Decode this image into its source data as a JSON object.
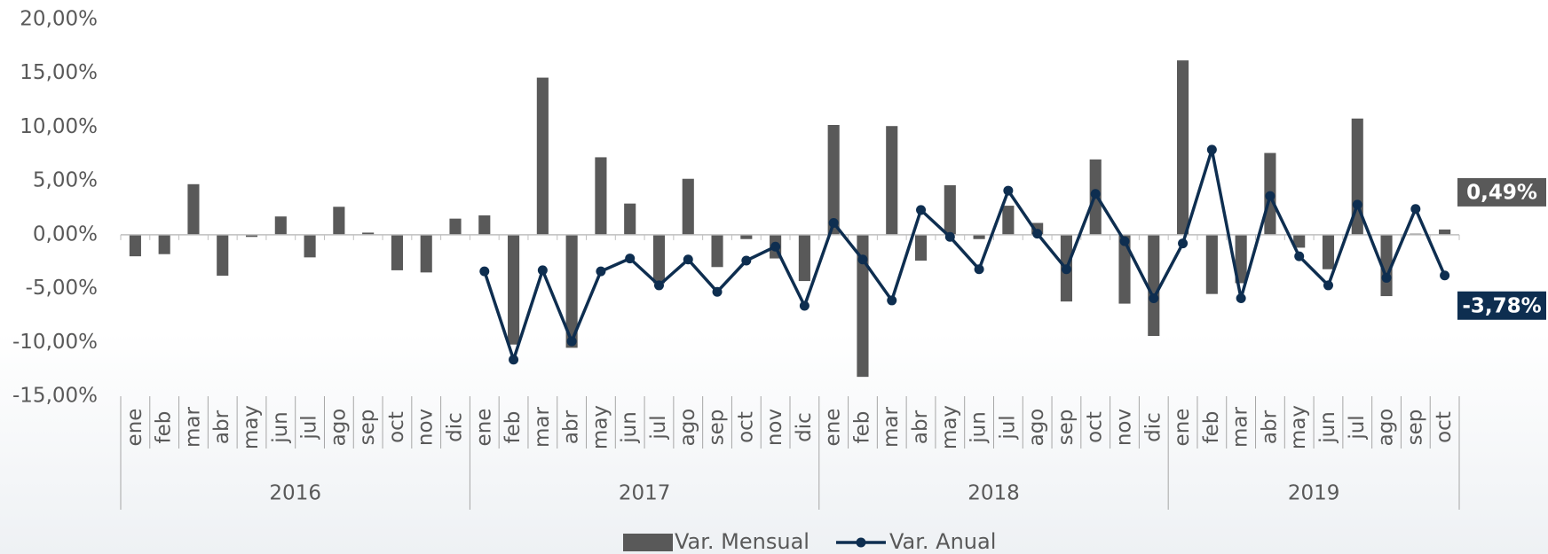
{
  "chart_data": {
    "type": "bar_line",
    "categories": [
      "ene",
      "feb",
      "mar",
      "abr",
      "may",
      "jun",
      "jul",
      "ago",
      "sep",
      "oct",
      "nov",
      "dic",
      "ene",
      "feb",
      "mar",
      "abr",
      "may",
      "jun",
      "jul",
      "ago",
      "sep",
      "oct",
      "nov",
      "dic",
      "ene",
      "feb",
      "mar",
      "abr",
      "may",
      "jun",
      "jul",
      "ago",
      "sep",
      "oct",
      "nov",
      "dic",
      "ene",
      "feb",
      "mar",
      "abr",
      "may",
      "jun",
      "jul",
      "ago",
      "sep",
      "oct"
    ],
    "groups": [
      "2016",
      "2017",
      "2018",
      "2019"
    ],
    "series": [
      {
        "name": "Var. Mensual",
        "type": "bar",
        "color": "#595959",
        "values": [
          -2.0,
          -1.8,
          4.7,
          -3.8,
          -0.2,
          1.7,
          -2.1,
          2.6,
          0.2,
          -3.3,
          -3.5,
          1.5,
          1.8,
          -10.2,
          14.6,
          -10.5,
          7.2,
          2.9,
          -4.5,
          5.2,
          -3.0,
          -0.4,
          -2.2,
          -4.3,
          10.2,
          -13.2,
          10.1,
          -2.4,
          4.6,
          -0.4,
          2.7,
          1.1,
          -6.2,
          7.0,
          -6.4,
          -9.4,
          16.2,
          -5.5,
          -4.5,
          7.6,
          -1.2,
          -3.2,
          10.8,
          -5.7,
          0.1,
          0.49
        ],
        "value_labels": [
          null,
          null,
          null,
          null,
          null,
          null,
          null,
          null,
          null,
          null,
          null,
          null,
          null,
          null,
          null,
          null,
          null,
          null,
          null,
          null,
          null,
          null,
          null,
          null,
          null,
          null,
          null,
          null,
          null,
          null,
          null,
          null,
          null,
          null,
          null,
          null,
          null,
          null,
          null,
          null,
          null,
          null,
          null,
          null,
          null,
          "0,49%"
        ],
        "label_color": "#595959"
      },
      {
        "name": "Var. Anual",
        "type": "line",
        "color": "#0e2e50",
        "values": [
          null,
          null,
          null,
          null,
          null,
          null,
          null,
          null,
          null,
          null,
          null,
          null,
          -3.4,
          -11.6,
          -3.3,
          -9.9,
          -3.4,
          -2.2,
          -4.7,
          -2.3,
          -5.3,
          -2.4,
          -1.1,
          -6.6,
          1.1,
          -2.3,
          -6.1,
          2.3,
          -0.2,
          -3.2,
          4.1,
          0.1,
          -3.2,
          3.8,
          -0.6,
          -5.9,
          -0.8,
          7.9,
          -5.9,
          3.6,
          -2.0,
          -4.7,
          2.8,
          -4.0,
          2.4,
          -3.78
        ],
        "value_labels": [
          null,
          null,
          null,
          null,
          null,
          null,
          null,
          null,
          null,
          null,
          null,
          null,
          null,
          null,
          null,
          null,
          null,
          null,
          null,
          null,
          null,
          null,
          null,
          null,
          null,
          null,
          null,
          null,
          null,
          null,
          null,
          null,
          null,
          null,
          null,
          null,
          null,
          null,
          null,
          null,
          null,
          null,
          null,
          null,
          null,
          "-3,78%"
        ],
        "label_color": "#0e2e50"
      }
    ],
    "ylim": [
      -15,
      20
    ],
    "yticks": [
      {
        "value": -15,
        "label": "-15,00%"
      },
      {
        "value": -10,
        "label": "-10,00%"
      },
      {
        "value": -5,
        "label": "-5,00%"
      },
      {
        "value": 0,
        "label": "0,00%"
      },
      {
        "value": 5,
        "label": "5,00%"
      },
      {
        "value": 10,
        "label": "10,00%"
      },
      {
        "value": 15,
        "label": "15,00%"
      },
      {
        "value": 20,
        "label": "20,00%"
      }
    ],
    "grid": false
  }
}
